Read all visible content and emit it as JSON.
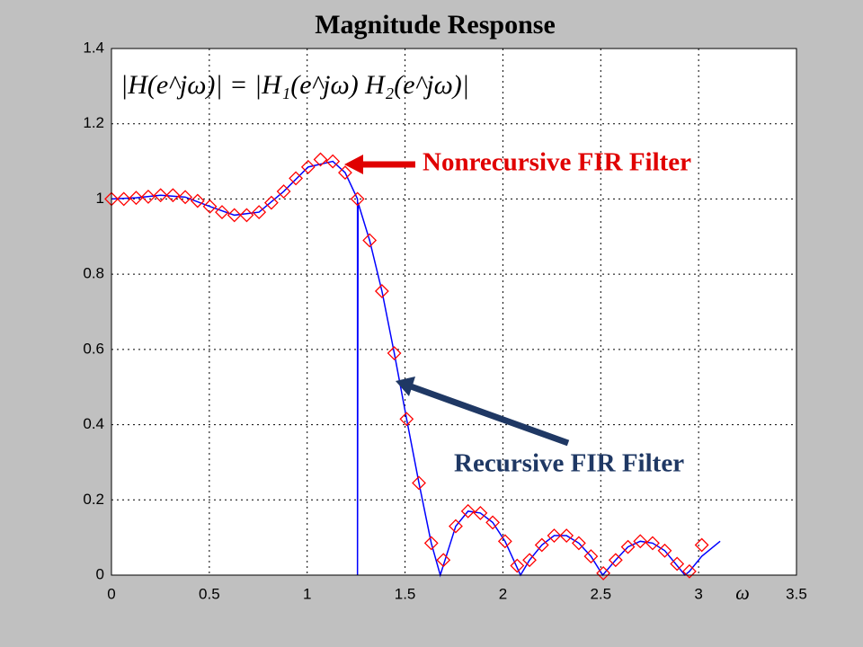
{
  "chart_data": {
    "type": "line",
    "title": "Magnitude Response",
    "formula": "|H(e^jω)| = |H₁(e^jω) H₂(e^jω)|",
    "x_label": "ω",
    "annotations": [
      "Nonrecursive FIR Filter",
      "Recursive FIR Filter"
    ],
    "xlim": [
      0,
      3.5
    ],
    "ylim": [
      0,
      1.4
    ],
    "xticks": [
      0,
      0.5,
      1,
      1.5,
      2,
      2.5,
      3,
      3.5
    ],
    "yticks": [
      0,
      0.2,
      0.4,
      0.6,
      0.8,
      1,
      1.2,
      1.4
    ],
    "grid": true,
    "series": [
      {
        "color": "#0000ff",
        "marker": "none",
        "x": [
          0,
          0.126,
          0.251,
          0.377,
          0.503,
          0.628,
          0.754,
          0.88,
          1.005,
          1.131,
          1.194,
          1.257,
          1.257,
          1.26,
          1.319,
          1.382,
          1.445,
          1.508,
          1.571,
          1.634,
          1.68,
          1.759,
          1.822,
          1.885,
          1.948,
          2.011,
          2.09,
          2.136,
          2.199,
          2.262,
          2.325,
          2.388,
          2.45,
          2.51,
          2.576,
          2.639,
          2.702,
          2.765,
          2.827,
          2.93,
          2.953,
          3.016,
          3.11
        ],
        "values": [
          1.0,
          1.003,
          1.01,
          1.005,
          0.98,
          0.957,
          0.965,
          1.02,
          1.085,
          1.1,
          1.07,
          1.0,
          0,
          0.99,
          0.89,
          0.755,
          0.59,
          0.415,
          0.245,
          0.085,
          0,
          0.13,
          0.17,
          0.165,
          0.14,
          0.09,
          0,
          0.04,
          0.08,
          0.105,
          0.105,
          0.085,
          0.05,
          0,
          0.04,
          0.075,
          0.09,
          0.085,
          0.065,
          0,
          0.01,
          0.05,
          0.09
        ]
      },
      {
        "color": "#ff0000",
        "marker": "diamond",
        "x": [
          0,
          0.063,
          0.126,
          0.188,
          0.251,
          0.314,
          0.377,
          0.44,
          0.503,
          0.565,
          0.628,
          0.691,
          0.754,
          0.817,
          0.88,
          0.942,
          1.005,
          1.068,
          1.131,
          1.194,
          1.257,
          1.319,
          1.382,
          1.445,
          1.508,
          1.571,
          1.634,
          1.696,
          1.759,
          1.822,
          1.885,
          1.948,
          2.011,
          2.073,
          2.136,
          2.199,
          2.262,
          2.325,
          2.388,
          2.45,
          2.513,
          2.576,
          2.639,
          2.702,
          2.765,
          2.827,
          2.89,
          2.953,
          3.016
        ],
        "values": [
          1.0,
          1.0,
          1.003,
          1.006,
          1.01,
          1.01,
          1.005,
          0.995,
          0.98,
          0.965,
          0.957,
          0.957,
          0.965,
          0.99,
          1.02,
          1.055,
          1.085,
          1.105,
          1.1,
          1.07,
          1.0,
          0.89,
          0.755,
          0.59,
          0.415,
          0.245,
          0.085,
          0.04,
          0.13,
          0.17,
          0.165,
          0.14,
          0.09,
          0.025,
          0.04,
          0.08,
          0.105,
          0.105,
          0.085,
          0.05,
          0.005,
          0.04,
          0.075,
          0.09,
          0.085,
          0.065,
          0.03,
          0.01,
          0.08
        ]
      }
    ]
  }
}
